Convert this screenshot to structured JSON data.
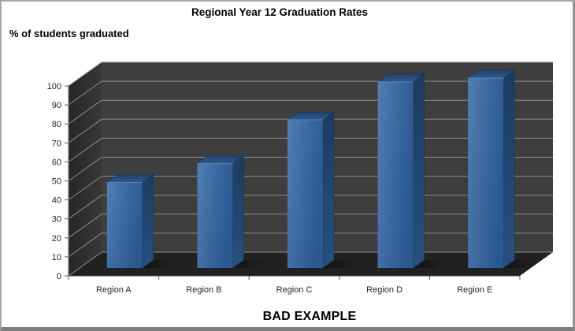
{
  "title": "Regional Year 12 Graduation Rates",
  "y_axis_title": "% of students graduated",
  "caption": "BAD EXAMPLE",
  "chart_data": {
    "type": "bar",
    "style": "3d-column",
    "title": "Regional Year 12 Graduation Rates",
    "categories": [
      "Region A",
      "Region B",
      "Region C",
      "Region D",
      "Region E"
    ],
    "values": [
      45,
      55,
      78,
      98,
      100
    ],
    "xlabel": "",
    "ylabel": "% of students graduated",
    "ylim": [
      0,
      100
    ],
    "ytick_step": 10,
    "ytick_labels": [
      "0",
      "10",
      "20",
      "30",
      "40",
      "50",
      "60",
      "70",
      "80",
      "90",
      "100"
    ],
    "grid": true,
    "legend": false,
    "annotation": "BAD EXAMPLE",
    "colors": {
      "bar_front_light": "#507fb4",
      "bar_front_mid": "#3a689f",
      "bar_front_dark": "#2a5890",
      "bar_top_back": "#1f4269",
      "bar_top_front": "#30598a",
      "bar_side_top": "#1c3c62",
      "bar_side_bottom": "#26507f",
      "bar_edge_highlight": "#5d88b8",
      "back_wall": "#3e3e3e",
      "side_wall_dark": "#262626",
      "side_wall_light": "#383838",
      "floor": "#212121",
      "gridline": "#8c8c8c",
      "axis_line": "#595959",
      "axis_text": "#262626"
    }
  }
}
